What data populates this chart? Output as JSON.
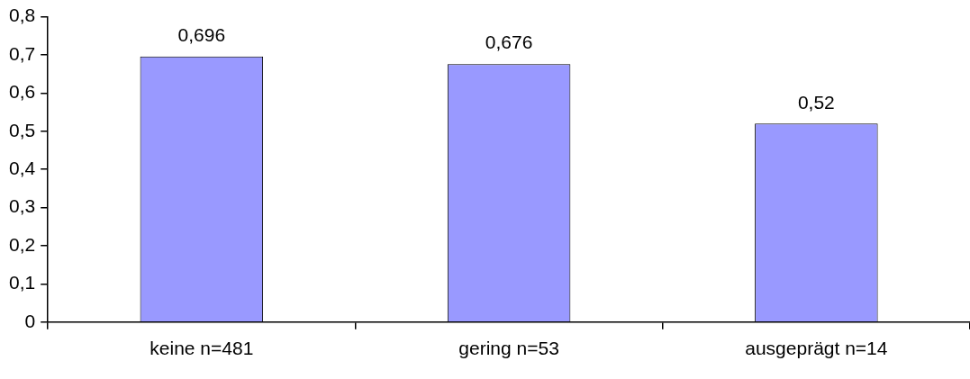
{
  "chart_data": {
    "type": "bar",
    "categories": [
      "keine n=481",
      "gering n=53",
      "ausgeprägt n=14"
    ],
    "values": [
      0.696,
      0.676,
      0.52
    ],
    "color": "#9999ff",
    "value_labels": [
      "0,696",
      "0,676",
      "0,52"
    ],
    "ylim": [
      0,
      0.8
    ],
    "yticks": [
      0,
      {
        "value": 0.1,
        "label": "0,1"
      },
      {
        "value": 0.2,
        "label": "0,2"
      },
      {
        "value": 0.3,
        "label": "0,3"
      },
      {
        "value": 0.4,
        "label": "0,4"
      },
      {
        "value": 0.5,
        "label": "0,5"
      },
      {
        "value": 0.6,
        "label": "0,6"
      },
      {
        "value": 0.7,
        "label": "0,7"
      },
      {
        "value": 0.8,
        "label": "0,8"
      }
    ],
    "grid": false,
    "legend": false
  }
}
